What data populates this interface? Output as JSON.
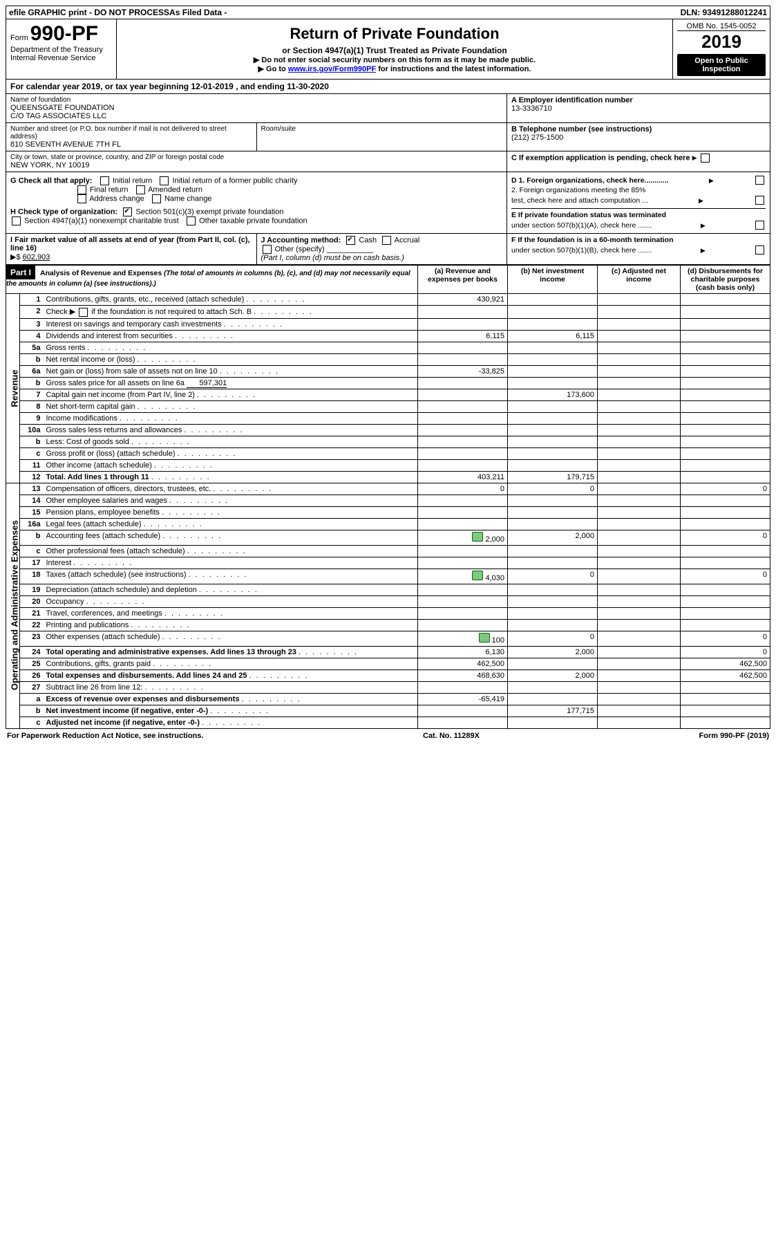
{
  "top": {
    "efile": "efile GRAPHIC print - DO NOT PROCESS",
    "asfiled": "As Filed Data -",
    "dln": "DLN: 93491288012241"
  },
  "header": {
    "form_prefix": "Form",
    "form_no": "990-PF",
    "dept": "Department of the Treasury",
    "irs": "Internal Revenue Service",
    "title": "Return of Private Foundation",
    "subtitle": "or Section 4947(a)(1) Trust Treated as Private Foundation",
    "warn1": "▶  Do not enter social security numbers on this form as it may be made public.",
    "warn2_pre": "▶  Go to ",
    "warn2_link": "www.irs.gov/Form990PF",
    "warn2_post": " for instructions and the latest information.",
    "omb": "OMB No. 1545-0052",
    "year": "2019",
    "open": "Open to Public Inspection"
  },
  "calendar": {
    "pre": "For calendar year 2019, or tax year beginning ",
    "begin": "12-01-2019",
    "mid": " , and ending ",
    "end": "11-30-2020"
  },
  "entity": {
    "name_label": "Name of foundation",
    "name1": "QUEENSGATE FOUNDATION",
    "name2": "C/O TAG ASSOCIATES LLC",
    "addr_label": "Number and street (or P.O. box number if mail is not delivered to street address)",
    "addr": "810 SEVENTH AVENUE 7TH FL",
    "room_label": "Room/suite",
    "city_label": "City or town, state or province, country, and ZIP or foreign postal code",
    "city": "NEW YORK, NY  10019",
    "A_label": "A Employer identification number",
    "A_val": "13-3336710",
    "B_label": "B Telephone number (see instructions)",
    "B_val": "(212) 275-1500",
    "C_label": "C  If exemption application is pending, check here"
  },
  "G": {
    "label": "G Check all that apply:",
    "opts": [
      "Initial return",
      "Initial return of a former public charity",
      "Final return",
      "Amended return",
      "Address change",
      "Name change"
    ]
  },
  "H": {
    "label": "H Check type of organization:",
    "o1": "Section 501(c)(3) exempt private foundation",
    "o2": "Section 4947(a)(1) nonexempt charitable trust",
    "o3": "Other taxable private foundation"
  },
  "D": {
    "d1": "D 1. Foreign organizations, check here............",
    "d2a": "2. Foreign organizations meeting the 85%",
    "d2b": "test, check here and attach computation ...",
    "E1": "E  If private foundation status was terminated",
    "E2": "under section 507(b)(1)(A), check here .......",
    "F1": "F  If the foundation is in a 60-month termination",
    "F2": "under section 507(b)(1)(B), check here ......."
  },
  "I": {
    "label": "I Fair market value of all assets at end of year (from Part II, col. (c), line 16)",
    "arrow": "▶$",
    "val": "602,903"
  },
  "J": {
    "label": "J Accounting method:",
    "cash": "Cash",
    "accrual": "Accrual",
    "other": "Other (specify)",
    "note": "(Part I, column (d) must be on cash basis.)"
  },
  "part1": {
    "tag": "Part I",
    "title": "Analysis of Revenue and Expenses",
    "sub": "(The total of amounts in columns (b), (c), and (d) may not necessarily equal the amounts in column (a) (see instructions).)",
    "cols": {
      "a": "(a) Revenue and expenses per books",
      "b": "(b) Net investment income",
      "c": "(c) Adjusted net income",
      "d": "(d) Disbursements for charitable purposes (cash basis only)"
    }
  },
  "side": {
    "rev": "Revenue",
    "exp": "Operating and Administrative Expenses"
  },
  "rows": {
    "r1": {
      "n": "1",
      "desc": "Contributions, gifts, grants, etc., received (attach schedule)",
      "a": "430,921"
    },
    "r2": {
      "n": "2",
      "desc_pre": "Check ▶ ",
      "desc_post": " if the foundation is not required to attach Sch. B"
    },
    "r3": {
      "n": "3",
      "desc": "Interest on savings and temporary cash investments"
    },
    "r4": {
      "n": "4",
      "desc": "Dividends and interest from securities",
      "a": "6,115",
      "b": "6,115"
    },
    "r5a": {
      "n": "5a",
      "desc": "Gross rents"
    },
    "r5b": {
      "n": "b",
      "desc": "Net rental income or (loss)"
    },
    "r6a": {
      "n": "6a",
      "desc": "Net gain or (loss) from sale of assets not on line 10",
      "a": "-33,825"
    },
    "r6b": {
      "n": "b",
      "desc": "Gross sales price for all assets on line 6a",
      "inline": "597,301"
    },
    "r7": {
      "n": "7",
      "desc": "Capital gain net income (from Part IV, line 2)",
      "b": "173,600"
    },
    "r8": {
      "n": "8",
      "desc": "Net short-term capital gain"
    },
    "r9": {
      "n": "9",
      "desc": "Income modifications"
    },
    "r10a": {
      "n": "10a",
      "desc": "Gross sales less returns and allowances"
    },
    "r10b": {
      "n": "b",
      "desc": "Less: Cost of goods sold"
    },
    "r10c": {
      "n": "c",
      "desc": "Gross profit or (loss) (attach schedule)"
    },
    "r11": {
      "n": "11",
      "desc": "Other income (attach schedule)"
    },
    "r12": {
      "n": "12",
      "desc": "Total. Add lines 1 through 11",
      "a": "403,211",
      "b": "179,715",
      "bold": true
    },
    "r13": {
      "n": "13",
      "desc": "Compensation of officers, directors, trustees, etc.",
      "a": "0",
      "b": "0",
      "d": "0"
    },
    "r14": {
      "n": "14",
      "desc": "Other employee salaries and wages"
    },
    "r15": {
      "n": "15",
      "desc": "Pension plans, employee benefits"
    },
    "r16a": {
      "n": "16a",
      "desc": "Legal fees (attach schedule)"
    },
    "r16b": {
      "n": "b",
      "desc": "Accounting fees (attach schedule)",
      "icon": true,
      "a": "2,000",
      "b": "2,000",
      "d": "0"
    },
    "r16c": {
      "n": "c",
      "desc": "Other professional fees (attach schedule)"
    },
    "r17": {
      "n": "17",
      "desc": "Interest"
    },
    "r18": {
      "n": "18",
      "desc": "Taxes (attach schedule) (see instructions)",
      "icon": true,
      "a": "4,030",
      "b": "0",
      "d": "0"
    },
    "r19": {
      "n": "19",
      "desc": "Depreciation (attach schedule) and depletion"
    },
    "r20": {
      "n": "20",
      "desc": "Occupancy"
    },
    "r21": {
      "n": "21",
      "desc": "Travel, conferences, and meetings"
    },
    "r22": {
      "n": "22",
      "desc": "Printing and publications"
    },
    "r23": {
      "n": "23",
      "desc": "Other expenses (attach schedule)",
      "icon": true,
      "a": "100",
      "b": "0",
      "d": "0"
    },
    "r24": {
      "n": "24",
      "desc": "Total operating and administrative expenses. Add lines 13 through 23",
      "a": "6,130",
      "b": "2,000",
      "d": "0",
      "bold": true
    },
    "r25": {
      "n": "25",
      "desc": "Contributions, gifts, grants paid",
      "a": "462,500",
      "d": "462,500"
    },
    "r26": {
      "n": "26",
      "desc": "Total expenses and disbursements. Add lines 24 and 25",
      "a": "468,630",
      "b": "2,000",
      "d": "462,500",
      "bold": true
    },
    "r27": {
      "n": "27",
      "desc": "Subtract line 26 from line 12:"
    },
    "r27a": {
      "n": "a",
      "desc": "Excess of revenue over expenses and disbursements",
      "a": "-65,419",
      "bold": true
    },
    "r27b": {
      "n": "b",
      "desc": "Net investment income (if negative, enter -0-)",
      "b": "177,715",
      "bold": true
    },
    "r27c": {
      "n": "c",
      "desc": "Adjusted net income (if negative, enter -0-)",
      "bold": true
    }
  },
  "footer": {
    "left": "For Paperwork Reduction Act Notice, see instructions.",
    "mid": "Cat. No. 11289X",
    "right": "Form 990-PF (2019)"
  }
}
